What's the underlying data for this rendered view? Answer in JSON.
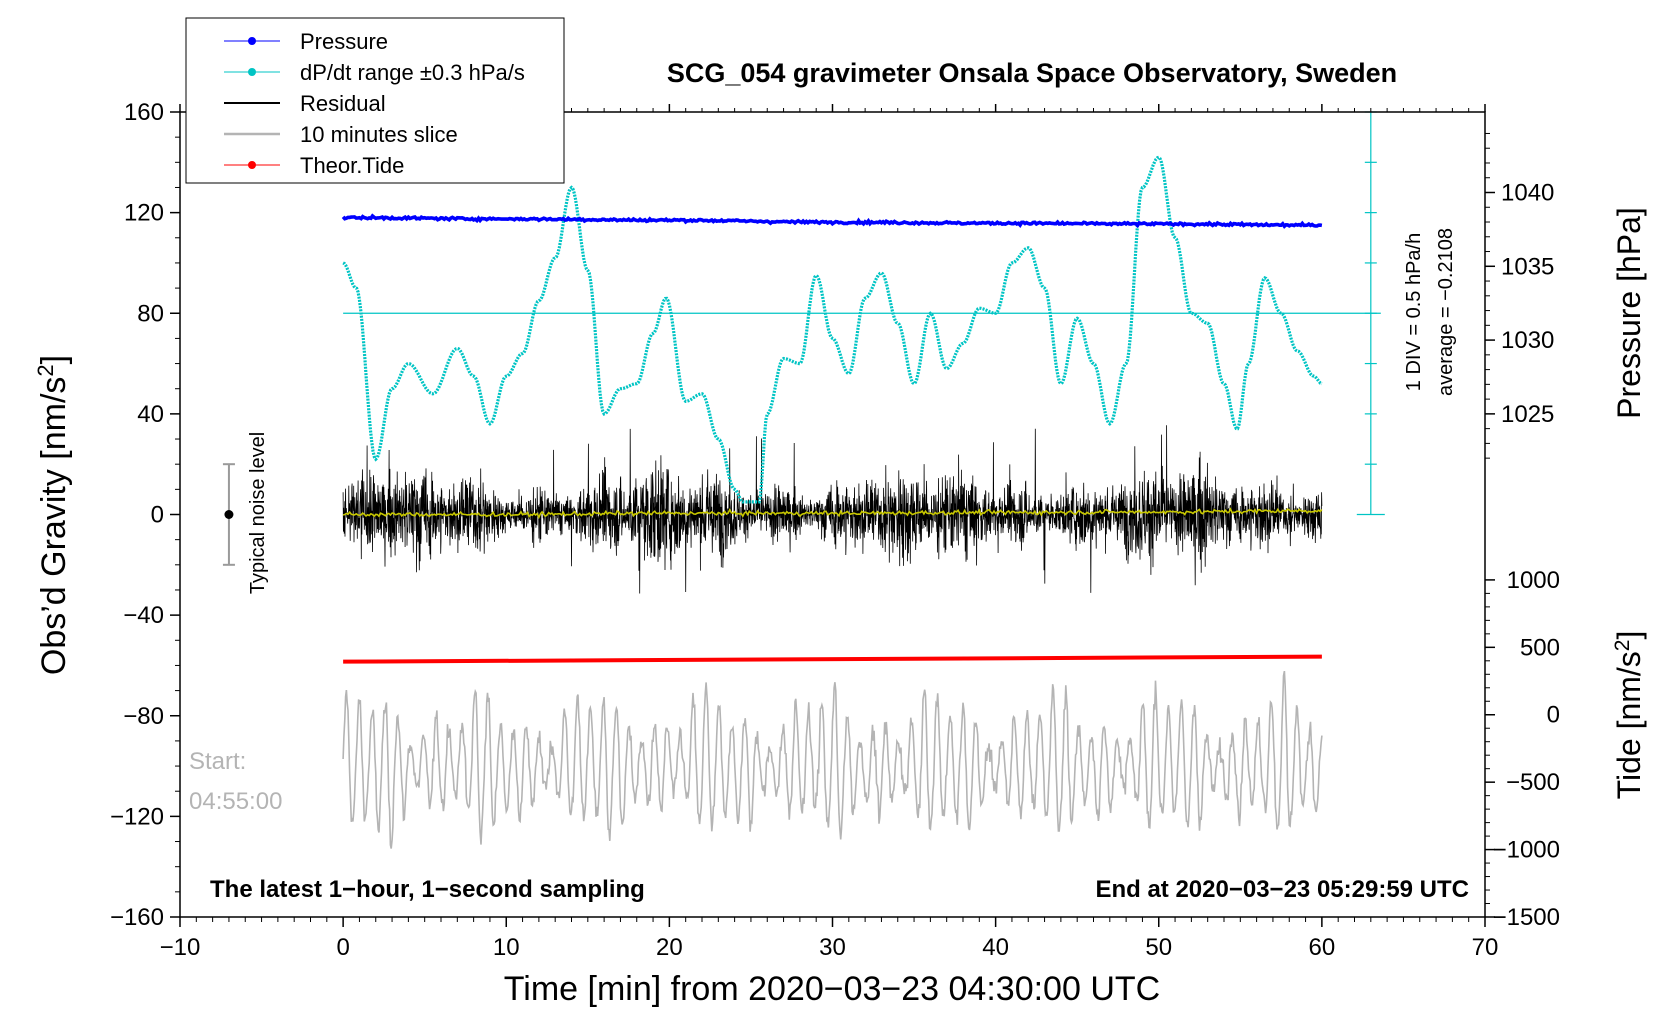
{
  "chart_data": {
    "type": "line",
    "title": "SCG_054 gravimeter Onsala Space Observatory, Sweden",
    "xlabel": "Time [min] from 2020−03−23 04:30:00 UTC",
    "ylabel": "Obs’d Gravity [nm/s",
    "ylabel_sup": "2",
    "ylabel_end": "]",
    "xlim": [
      -10,
      70
    ],
    "ylim": [
      -160,
      160
    ],
    "xticks": [
      -10,
      0,
      10,
      20,
      30,
      40,
      50,
      60,
      70
    ],
    "xtick_labels": [
      "−10",
      "0",
      "10",
      "20",
      "30",
      "40",
      "50",
      "60",
      "70"
    ],
    "yticks": [
      -160,
      -120,
      -80,
      -40,
      0,
      40,
      80,
      120,
      160
    ],
    "ytick_labels": [
      "−160",
      "−120",
      "−80",
      "−40",
      "0",
      "40",
      "80",
      "120",
      "160"
    ],
    "pressure_axis": {
      "label": "Pressure [hPa]",
      "ticks": [
        1025,
        1030,
        1035,
        1040
      ],
      "tick_labels": [
        "1025",
        "1030",
        "1035",
        "1040"
      ],
      "gravity_at_1025": 40,
      "gravity_at_1040": 128
    },
    "tide_axis": {
      "label": "Tide [nm/s",
      "label_sup": "2",
      "label_end": "]",
      "ticks": [
        1000,
        500,
        0,
        -500,
        -1000,
        -1500
      ],
      "tick_labels": [
        "1000",
        "500",
        "0",
        "−500",
        "−1000",
        "−1500"
      ],
      "gravity_at_1000": -26,
      "gravity_at_minus1500": -160
    },
    "dpdt_scale": {
      "label_div": "1 DIV = 0.5 hPa/h",
      "label_avg": "average = −0.2108",
      "reference_gravity": 80,
      "scale_top_gravity": 160,
      "scale_bottom_gravity": 0,
      "divisions": 8
    },
    "legend": [
      {
        "name": "Pressure",
        "color": "#0000ff",
        "marker": true
      },
      {
        "name": "dP/dt range ±0.3 hPa/s",
        "color": "#00c4c4",
        "marker": true
      },
      {
        "name": "Residual",
        "color": "#000000",
        "marker": false
      },
      {
        "name": "10 minutes slice",
        "color": "#b4b4b4",
        "marker": false
      },
      {
        "name": "Theor.Tide",
        "color": "#ff0000",
        "marker": true
      }
    ],
    "noise_level": {
      "label": "Typical noise level",
      "x": -7,
      "center": 0,
      "half_range": 20
    },
    "start_label": "Start:",
    "start_time": "04:55:00",
    "note_left": "The latest 1−hour, 1−second sampling",
    "note_right": "End at 2020−03−23 05:29:59 UTC",
    "series": [
      {
        "name": "Pressure",
        "unit": "gravity-axis",
        "color": "#0000ff",
        "x": [
          0,
          10,
          20,
          30,
          40,
          50,
          60
        ],
        "values": [
          118,
          117.5,
          117,
          116.2,
          115.8,
          115.5,
          115
        ]
      },
      {
        "name": "dP/dt range ±0.3 hPa/s",
        "unit": "gravity-axis",
        "color": "#00c4c4",
        "x": [
          0,
          0.8,
          2,
          3,
          4,
          5.5,
          7,
          8,
          9,
          10,
          11,
          12,
          13,
          14,
          15,
          16,
          17,
          18,
          19,
          19.8,
          21,
          22,
          23,
          24,
          24.5,
          25.5,
          26,
          27,
          28,
          29,
          30,
          31,
          32,
          33,
          34,
          35,
          36,
          37,
          38,
          39,
          40,
          41,
          42,
          43,
          44,
          45,
          46,
          47,
          48,
          49,
          50,
          51,
          52,
          53,
          54,
          54.8,
          55.5,
          56.5,
          57.5,
          58.5,
          59.5,
          60
        ],
        "values": [
          100,
          90,
          22,
          50,
          60,
          48,
          66,
          55,
          36,
          55,
          64,
          85,
          102,
          130,
          97,
          40,
          50,
          52,
          72,
          86,
          45,
          48,
          30,
          10,
          5,
          5,
          40,
          62,
          60,
          95,
          70,
          56,
          86,
          96,
          76,
          52,
          80,
          58,
          68,
          82,
          80,
          100,
          106,
          90,
          52,
          78,
          60,
          36,
          60,
          130,
          142,
          110,
          80,
          76,
          52,
          34,
          60,
          94,
          80,
          65,
          55,
          52
        ]
      },
      {
        "name": "Residual",
        "unit": "gravity-axis",
        "color": "#000000",
        "x": [
          0,
          60
        ],
        "values": [
          0,
          0
        ]
      },
      {
        "name": "Residual smoothed",
        "unit": "gravity-axis",
        "color": "#c8c800",
        "x": [
          0,
          10,
          20,
          30,
          40,
          50,
          60
        ],
        "values": [
          0,
          0,
          0.5,
          0.5,
          0.8,
          1,
          1.5
        ]
      },
      {
        "name": "10 minutes slice",
        "unit": "gravity-axis",
        "color": "#b4b4b4",
        "x": [
          0,
          60
        ],
        "values": [
          -100,
          -100
        ]
      },
      {
        "name": "Theor.Tide",
        "unit": "gravity-axis",
        "color": "#ff0000",
        "x": [
          0,
          60
        ],
        "values": [
          -58.5,
          -56.5
        ]
      }
    ]
  }
}
